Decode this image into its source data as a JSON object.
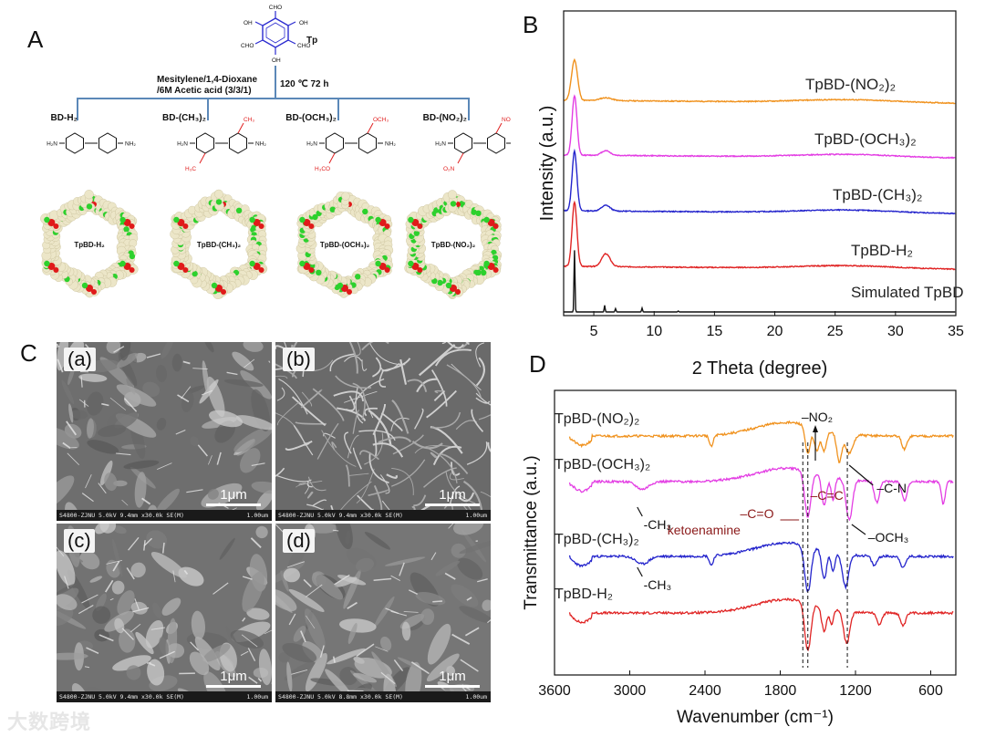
{
  "panels": {
    "A": "A",
    "B": "B",
    "C": "C",
    "D": "D"
  },
  "panel_a": {
    "monomer": "Tp",
    "cho": "CHO",
    "oh": "OH",
    "solvent_line1": "Mesitylene/1,4-Dioxane",
    "solvent_line2": "/6M Acetic acid (3/3/1)",
    "conditions": "120 ℃  72 h",
    "linkers": [
      {
        "name": "BD-H₂",
        "framework": "TpBD-H₂",
        "sub": ""
      },
      {
        "name": "BD-(CH₃)₂",
        "framework": "TpBD-(CH₃)₂",
        "sub": "CH₃"
      },
      {
        "name": "BD-(OCH₃)₂",
        "framework": "TpBD-(OCH₃)₂",
        "sub": "OCH₃"
      },
      {
        "name": "BD-(NO₂)₂",
        "framework": "TpBD-(NO₂)₂",
        "sub": "NO₂"
      }
    ],
    "nh2": "NH₂",
    "h2n": "H₂N"
  },
  "panel_c": {
    "images": [
      {
        "tag": "(a)",
        "scale": "1μm",
        "footer": "S4800-ZJNU 5.0kV 9.4mm x30.0k SE(M)",
        "footer_right": "1.00um"
      },
      {
        "tag": "(b)",
        "scale": "1μm",
        "footer": "S4800-ZJNU 5.0kV 9.4mm x30.0k SE(M)",
        "footer_right": "1.00um"
      },
      {
        "tag": "(c)",
        "scale": "1μm",
        "footer": "S4800-ZJNU 5.0kV 9.4mm x30.0k SE(M)",
        "footer_right": "1.00um"
      },
      {
        "tag": "(d)",
        "scale": "1μm",
        "footer": "S4800-ZJNU 5.0kV 8.8mm x30.0k SE(M)",
        "footer_right": "1.00um"
      }
    ]
  },
  "watermark": "大数跨境",
  "chart_data": [
    {
      "id": "B",
      "type": "line",
      "title": "",
      "xlabel": "2 Theta (degree)",
      "ylabel": "Intensity (a.u.)",
      "xlim": [
        2.5,
        35
      ],
      "xticks": [
        5,
        10,
        15,
        20,
        25,
        30,
        35
      ],
      "series": [
        {
          "name": "TpBD-(NO₂)₂",
          "color": "#f0921e",
          "offset": 4,
          "peaks": [
            [
              3.4,
              0.85,
              0.25
            ],
            [
              6.0,
              0.06,
              0.5
            ]
          ]
        },
        {
          "name": "TpBD-(OCH₃)₂",
          "color": "#e33de3",
          "offset": 3,
          "peaks": [
            [
              3.4,
              1.25,
              0.2
            ],
            [
              6.0,
              0.1,
              0.35
            ]
          ]
        },
        {
          "name": "TpBD-(CH₃)₂",
          "color": "#2424cc",
          "offset": 2,
          "peaks": [
            [
              3.4,
              1.25,
              0.2
            ],
            [
              6.0,
              0.12,
              0.35
            ]
          ]
        },
        {
          "name": "TpBD-H₂",
          "color": "#e02424",
          "offset": 1,
          "peaks": [
            [
              3.4,
              1.35,
              0.2
            ],
            [
              6.0,
              0.27,
              0.35
            ]
          ]
        },
        {
          "name": "Simulated TpBD",
          "color": "#111111",
          "offset": 0,
          "peaks": [
            [
              3.4,
              1.3,
              0.04
            ],
            [
              5.9,
              0.14,
              0.04
            ],
            [
              6.8,
              0.07,
              0.04
            ],
            [
              9.0,
              0.08,
              0.04
            ],
            [
              12.0,
              0.02,
              0.04
            ]
          ]
        }
      ]
    },
    {
      "id": "D",
      "type": "line",
      "title": "",
      "xlabel": "Wavenumber (cm⁻¹)",
      "ylabel": "Transmittance (a.u.)",
      "xlim": [
        3600,
        400
      ],
      "xticks": [
        3600,
        3000,
        2400,
        1800,
        1200,
        600
      ],
      "series": [
        {
          "name": "TpBD-(NO₂)₂",
          "color": "#f0921e",
          "offset": 3,
          "dips": [
            [
              2350,
              0.3,
              15
            ],
            [
              1580,
              0.75,
              20
            ],
            [
              1510,
              0.6,
              20
            ],
            [
              1450,
              0.55,
              20
            ],
            [
              1330,
              0.75,
              20
            ],
            [
              1250,
              0.5,
              30
            ],
            [
              810,
              0.35,
              20
            ]
          ]
        },
        {
          "name": "TpBD-(OCH₃)₂",
          "color": "#e33de3",
          "offset": 2,
          "dips": [
            [
              2900,
              0.2,
              50
            ],
            [
              1580,
              1.2,
              25
            ],
            [
              1450,
              0.8,
              20
            ],
            [
              1380,
              0.6,
              15
            ],
            [
              1250,
              1.05,
              25
            ],
            [
              1030,
              0.55,
              20
            ],
            [
              810,
              0.5,
              20
            ],
            [
              500,
              0.6,
              15
            ]
          ]
        },
        {
          "name": "TpBD-(CH₃)₂",
          "color": "#2424cc",
          "offset": 1,
          "dips": [
            [
              2900,
              0.2,
              50
            ],
            [
              2350,
              0.25,
              15
            ],
            [
              1580,
              1.2,
              25
            ],
            [
              1450,
              0.75,
              20
            ],
            [
              1380,
              0.5,
              15
            ],
            [
              1280,
              0.85,
              25
            ],
            [
              1050,
              0.25,
              20
            ],
            [
              820,
              0.3,
              20
            ]
          ]
        },
        {
          "name": "TpBD-H₂",
          "color": "#e02424",
          "offset": 0,
          "dips": [
            [
              1580,
              1.25,
              25
            ],
            [
              1450,
              0.65,
              20
            ],
            [
              1390,
              0.4,
              15
            ],
            [
              1270,
              0.85,
              25
            ],
            [
              1010,
              0.3,
              20
            ],
            [
              820,
              0.35,
              20
            ]
          ]
        }
      ],
      "annotations": {
        "no2": "–NO₂",
        "cn": "–C-N",
        "cc": "–C=C",
        "co": "–C=O",
        "keto": "ketoenamine",
        "och3": "–OCH₃",
        "ch3": "-CH₃"
      }
    }
  ]
}
